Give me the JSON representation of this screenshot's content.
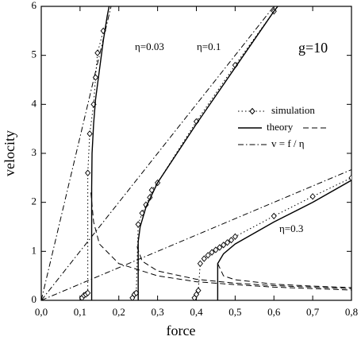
{
  "chart_data": {
    "type": "line",
    "xlabel": "force",
    "ylabel": "velocity",
    "xlim": [
      0,
      0.8
    ],
    "ylim": [
      0,
      6
    ],
    "xticks": [
      {
        "value": 0,
        "label": "0,0"
      },
      {
        "value": 0.1,
        "label": "0,1"
      },
      {
        "value": 0.2,
        "label": "0,2"
      },
      {
        "value": 0.3,
        "label": "0,3"
      },
      {
        "value": 0.4,
        "label": "0,4"
      },
      {
        "value": 0.5,
        "label": "0,5"
      },
      {
        "value": 0.6,
        "label": "0,6"
      },
      {
        "value": 0.7,
        "label": "0,7"
      },
      {
        "value": 0.8,
        "label": "0,8"
      }
    ],
    "yticks": [
      0,
      1,
      2,
      3,
      4,
      5,
      6
    ],
    "annotations": [
      "η=0.03",
      "η=0.1",
      "η=0.3",
      "g=10"
    ],
    "series": [
      {
        "name": "simulation",
        "color": "#000000",
        "line": "dotted",
        "marker": "diamond",
        "curves": [
          {
            "x": [
              0.105,
              0.11,
              0.115,
              0.12,
              0.12,
              0.125,
              0.135,
              0.14,
              0.145,
              0.16
            ],
            "values": [
              0.05,
              0.1,
              0.12,
              0.15,
              2.6,
              3.4,
              4.0,
              4.55,
              5.05,
              5.5
            ]
          },
          {
            "x": [
              0.235,
              0.24,
              0.245,
              0.25,
              0.26,
              0.27,
              0.28,
              0.285,
              0.3,
              0.4,
              0.5,
              0.6
            ],
            "values": [
              0.05,
              0.12,
              0.15,
              1.55,
              1.78,
              1.95,
              2.1,
              2.25,
              2.4,
              3.65,
              4.8,
              5.9
            ]
          },
          {
            "x": [
              0.395,
              0.4,
              0.405,
              0.41,
              0.42,
              0.43,
              0.44,
              0.45,
              0.46,
              0.47,
              0.48,
              0.49,
              0.5,
              0.6,
              0.7,
              0.8
            ],
            "values": [
              0.05,
              0.12,
              0.2,
              0.75,
              0.85,
              0.92,
              0.98,
              1.03,
              1.08,
              1.13,
              1.18,
              1.23,
              1.3,
              1.72,
              2.12,
              2.5
            ]
          }
        ]
      },
      {
        "name": "theory",
        "color": "#000000",
        "curves": [
          {
            "line": "solid",
            "x": [
              0.13,
              0.13,
              0.131,
              0.135,
              0.14,
              0.15,
              0.16,
              0.17,
              0.175
            ],
            "values": [
              0,
              2.3,
              3.0,
              3.6,
              4.1,
              4.7,
              5.3,
              5.8,
              6
            ]
          },
          {
            "line": "dashed",
            "x": [
              0.128,
              0.135,
              0.15,
              0.2,
              0.3,
              0.4,
              0.5,
              0.6,
              0.7,
              0.8
            ],
            "values": [
              2.2,
              1.6,
              1.15,
              0.75,
              0.5,
              0.38,
              0.32,
              0.27,
              0.24,
              0.21
            ]
          },
          {
            "line": "solid",
            "x": [
              0.25,
              0.25,
              0.255,
              0.27,
              0.3,
              0.35,
              0.4,
              0.5,
              0.6,
              0.61
            ],
            "values": [
              0,
              1.2,
              1.5,
              1.9,
              2.4,
              3.0,
              3.6,
              4.75,
              5.9,
              6
            ]
          },
          {
            "line": "dashed",
            "x": [
              0.247,
              0.26,
              0.3,
              0.4,
              0.5,
              0.6,
              0.7,
              0.8
            ],
            "values": [
              1.1,
              0.8,
              0.6,
              0.43,
              0.35,
              0.3,
              0.27,
              0.24
            ]
          },
          {
            "line": "solid",
            "x": [
              0.455,
              0.455,
              0.47,
              0.5,
              0.6,
              0.7,
              0.8
            ],
            "values": [
              0,
              0.75,
              0.95,
              1.15,
              1.6,
              2.0,
              2.45
            ]
          },
          {
            "line": "dashed",
            "x": [
              0.455,
              0.47,
              0.5,
              0.6,
              0.7,
              0.8
            ],
            "values": [
              0.75,
              0.5,
              0.42,
              0.33,
              0.29,
              0.26
            ]
          }
        ]
      },
      {
        "name": "v = f / η",
        "color": "#000000",
        "line": "dashdot",
        "curves": [
          {
            "x": [
              0,
              0.18
            ],
            "values": [
              0,
              6
            ]
          },
          {
            "x": [
              0,
              0.6
            ],
            "values": [
              0,
              6
            ]
          },
          {
            "x": [
              0,
              0.8
            ],
            "values": [
              0,
              2.667
            ]
          }
        ]
      }
    ]
  }
}
